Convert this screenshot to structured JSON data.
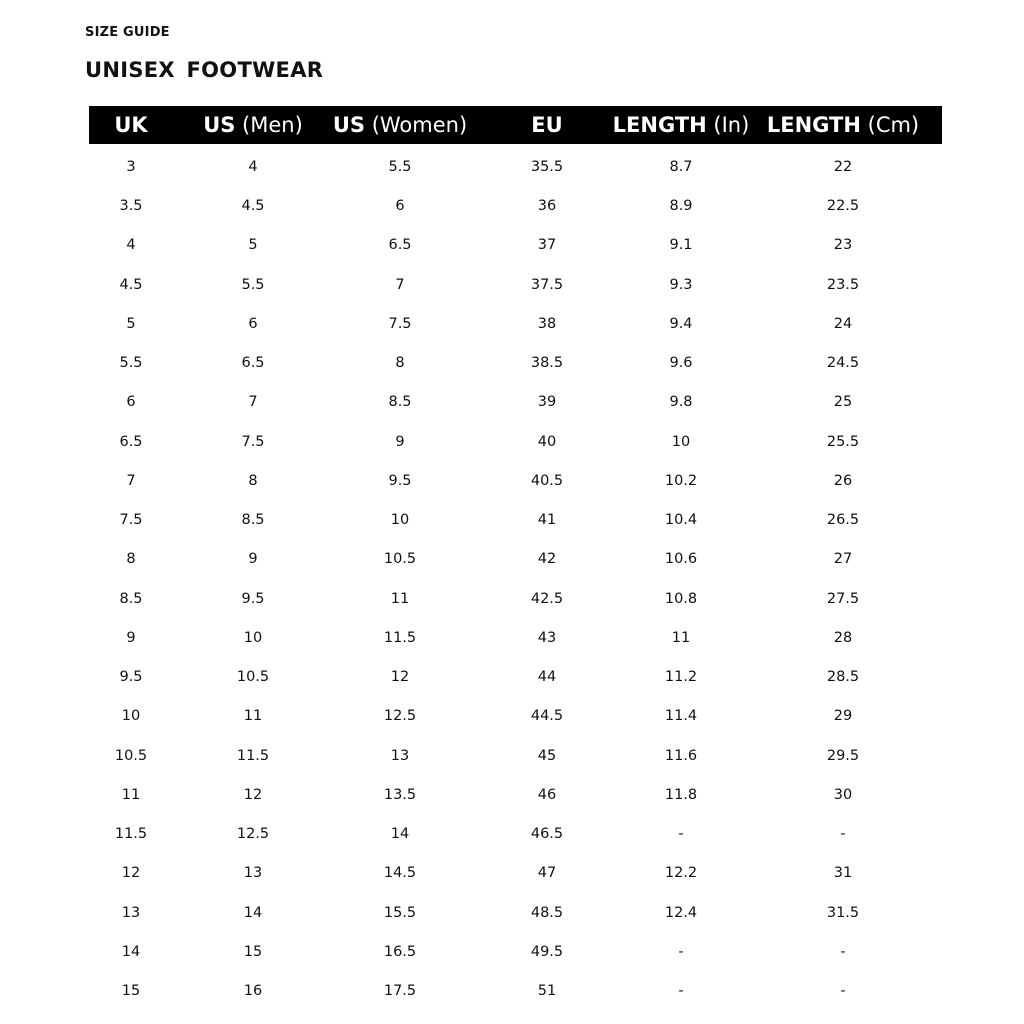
{
  "eyebrow": "SIZE GUIDE",
  "title": "UNISEX  FOOTWEAR",
  "columns": [
    {
      "bold": "UK",
      "light": ""
    },
    {
      "bold": "US",
      "light": " (Men)"
    },
    {
      "bold": "US",
      "light": " (Women)"
    },
    {
      "bold": "EU",
      "light": ""
    },
    {
      "bold": "LENGTH",
      "light": " (In)"
    },
    {
      "bold": "LENGTH",
      "light": " (Cm)"
    }
  ],
  "rows": [
    [
      "3",
      "4",
      "5.5",
      "35.5",
      "8.7",
      "22"
    ],
    [
      "3.5",
      "4.5",
      "6",
      "36",
      "8.9",
      "22.5"
    ],
    [
      "4",
      "5",
      "6.5",
      "37",
      "9.1",
      "23"
    ],
    [
      "4.5",
      "5.5",
      "7",
      "37.5",
      "9.3",
      "23.5"
    ],
    [
      "5",
      "6",
      "7.5",
      "38",
      "9.4",
      "24"
    ],
    [
      "5.5",
      "6.5",
      "8",
      "38.5",
      "9.6",
      "24.5"
    ],
    [
      "6",
      "7",
      "8.5",
      "39",
      "9.8",
      "25"
    ],
    [
      "6.5",
      "7.5",
      "9",
      "40",
      "10",
      "25.5"
    ],
    [
      "7",
      "8",
      "9.5",
      "40.5",
      "10.2",
      "26"
    ],
    [
      "7.5",
      "8.5",
      "10",
      "41",
      "10.4",
      "26.5"
    ],
    [
      "8",
      "9",
      "10.5",
      "42",
      "10.6",
      "27"
    ],
    [
      "8.5",
      "9.5",
      "11",
      "42.5",
      "10.8",
      "27.5"
    ],
    [
      "9",
      "10",
      "11.5",
      "43",
      "11",
      "28"
    ],
    [
      "9.5",
      "10.5",
      "12",
      "44",
      "11.2",
      "28.5"
    ],
    [
      "10",
      "11",
      "12.5",
      "44.5",
      "11.4",
      "29"
    ],
    [
      "10.5",
      "11.5",
      "13",
      "45",
      "11.6",
      "29.5"
    ],
    [
      "11",
      "12",
      "13.5",
      "46",
      "11.8",
      "30"
    ],
    [
      "11.5",
      "12.5",
      "14",
      "46.5",
      "-",
      "-"
    ],
    [
      "12",
      "13",
      "14.5",
      "47",
      "12.2",
      "31"
    ],
    [
      "13",
      "14",
      "15.5",
      "48.5",
      "12.4",
      "31.5"
    ],
    [
      "14",
      "15",
      "16.5",
      "49.5",
      "-",
      "-"
    ],
    [
      "15",
      "16",
      "17.5",
      "51",
      "-",
      "-"
    ]
  ]
}
